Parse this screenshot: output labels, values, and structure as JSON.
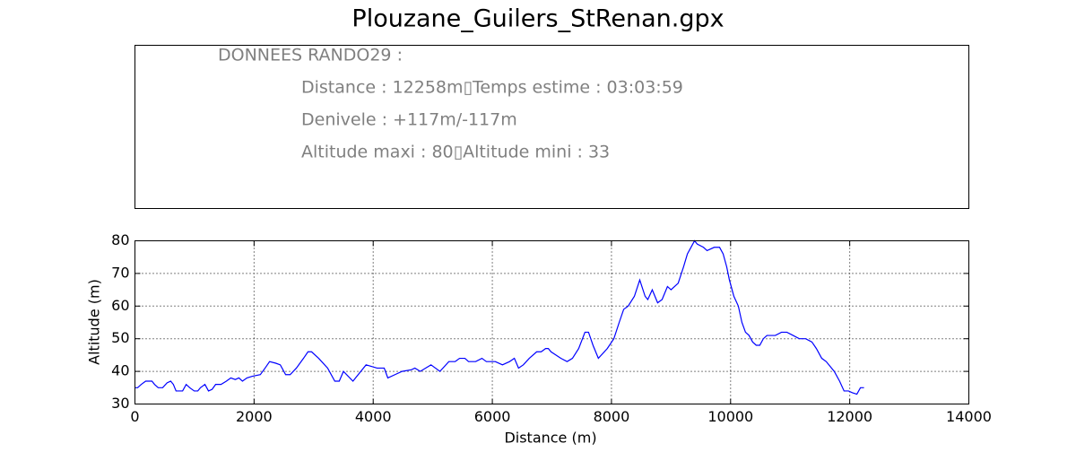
{
  "title": "Plouzane_Guilers_StRenan.gpx",
  "info_panel": {
    "lines": [
      "DONNEES RANDO29  :",
      "Distance : 12258m▯Temps estime : 03:03:59",
      "Denivele : +117m/-117m",
      "Altitude maxi : 80▯Altitude mini : 33"
    ]
  },
  "chart_data": {
    "type": "line",
    "xlabel": "Distance (m)",
    "ylabel": "Altitude (m)",
    "xlim": [
      0,
      14000
    ],
    "ylim": [
      30,
      80
    ],
    "xticks": [
      0,
      2000,
      4000,
      6000,
      8000,
      10000,
      12000,
      14000
    ],
    "yticks": [
      30,
      40,
      50,
      60,
      70,
      80
    ],
    "grid": true,
    "series": [
      {
        "color": "#0000ff",
        "x": [
          0,
          45,
          105,
          180,
          285,
          330,
          390,
          465,
          540,
          600,
          645,
          690,
          800,
          860,
          920,
          995,
          1055,
          1100,
          1175,
          1235,
          1295,
          1355,
          1445,
          1535,
          1610,
          1685,
          1745,
          1805,
          1880,
          1970,
          2105,
          2185,
          2260,
          2365,
          2440,
          2530,
          2605,
          2710,
          2830,
          2905,
          2965,
          3085,
          3235,
          3355,
          3430,
          3500,
          3660,
          3880,
          4065,
          4185,
          4245,
          4365,
          4485,
          4640,
          4700,
          4790,
          4970,
          5120,
          5270,
          5375,
          5450,
          5540,
          5600,
          5720,
          5825,
          5900,
          6050,
          6170,
          6290,
          6370,
          6440,
          6520,
          6620,
          6745,
          6820,
          6895,
          6940,
          6985,
          7150,
          7255,
          7345,
          7450,
          7555,
          7615,
          7690,
          7780,
          7930,
          8040,
          8130,
          8205,
          8280,
          8385,
          8475,
          8565,
          8610,
          8685,
          8775,
          8850,
          8940,
          9000,
          9120,
          9210,
          9275,
          9335,
          9395,
          9440,
          9545,
          9605,
          9725,
          9815,
          9875,
          9935,
          9980,
          10055,
          10130,
          10190,
          10250,
          10310,
          10370,
          10430,
          10490,
          10550,
          10610,
          10750,
          10855,
          10945,
          11050,
          11155,
          11260,
          11365,
          11440,
          11530,
          11605,
          11740,
          11830,
          11905,
          11980,
          12040,
          12120,
          12180,
          12240
        ],
        "values": [
          35,
          35,
          36,
          37,
          37,
          36,
          35,
          35,
          36.5,
          37,
          36,
          34,
          34,
          36,
          35,
          34,
          34,
          35,
          36,
          34,
          34.5,
          36,
          36,
          37,
          38,
          37.5,
          38,
          37,
          38,
          38.5,
          39,
          41,
          43,
          42.5,
          42,
          39,
          39,
          41,
          44,
          46,
          46,
          44,
          41,
          37,
          37,
          40,
          37,
          42,
          41,
          41,
          38,
          39,
          40,
          40.5,
          41,
          40,
          42,
          40,
          43,
          43,
          44,
          44,
          43,
          43,
          44,
          43,
          43,
          42,
          43,
          44,
          41,
          42,
          44,
          46,
          46,
          47,
          47,
          46,
          44,
          43,
          44,
          47,
          52,
          52,
          48,
          44,
          47,
          50,
          55,
          59,
          60,
          63,
          68,
          63,
          62,
          65,
          61,
          62,
          66,
          65,
          67,
          72,
          76,
          78,
          80,
          79,
          78,
          77,
          78,
          78,
          76,
          72,
          68,
          63,
          60,
          55,
          52,
          51,
          49,
          48,
          48,
          50,
          51,
          51,
          52,
          52,
          51,
          50,
          50,
          49,
          47,
          44,
          43,
          40,
          37,
          34,
          34,
          33.5,
          33,
          35,
          35
        ]
      }
    ]
  }
}
